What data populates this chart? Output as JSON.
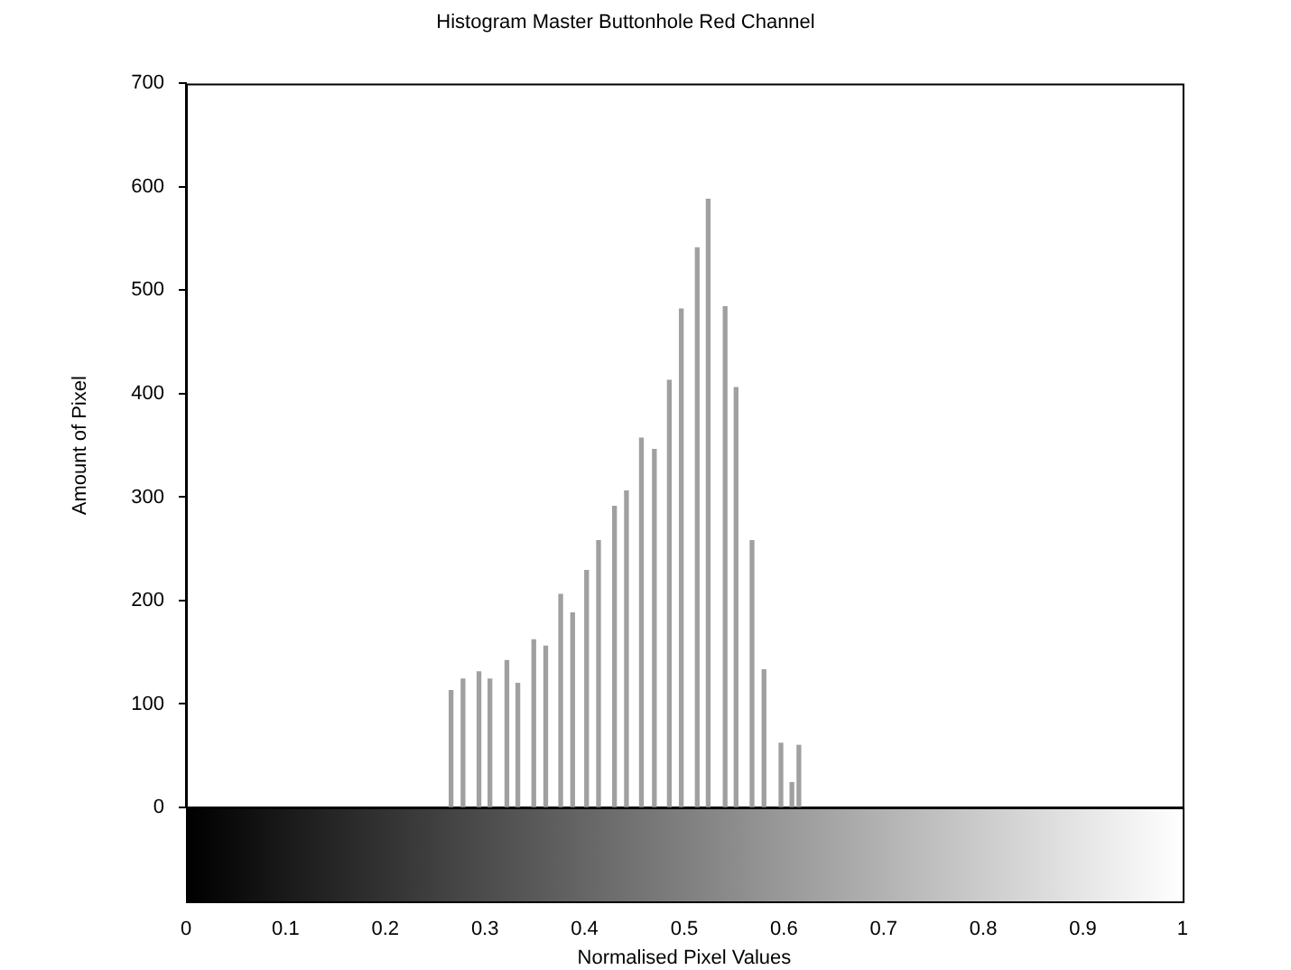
{
  "chart_data": {
    "type": "bar",
    "title": "Histogram Master Buttonhole Red Channel",
    "xlabel": "Normalised Pixel Values",
    "ylabel": "Amount of Pixel",
    "color": "#a0a0a0",
    "x": [
      0.266,
      0.278,
      0.294,
      0.305,
      0.322,
      0.333,
      0.349,
      0.361,
      0.376,
      0.388,
      0.402,
      0.414,
      0.43,
      0.442,
      0.457,
      0.47,
      0.485,
      0.497,
      0.513,
      0.524,
      0.541,
      0.552,
      0.568,
      0.58,
      0.597,
      0.608,
      0.615
    ],
    "values": [
      113,
      124,
      131,
      124,
      142,
      120,
      162,
      156,
      206,
      188,
      229,
      258,
      291,
      306,
      357,
      346,
      413,
      482,
      541,
      588,
      484,
      406,
      258,
      133,
      62,
      24,
      60
    ],
    "xlim": [
      0,
      1
    ],
    "ylim": [
      0,
      700
    ],
    "xticks": [
      0,
      0.1,
      0.2,
      0.3,
      0.4,
      0.5,
      0.6,
      0.7,
      0.8,
      0.9,
      1
    ],
    "yticks": [
      0,
      100,
      200,
      300,
      400,
      500,
      600,
      700
    ]
  }
}
